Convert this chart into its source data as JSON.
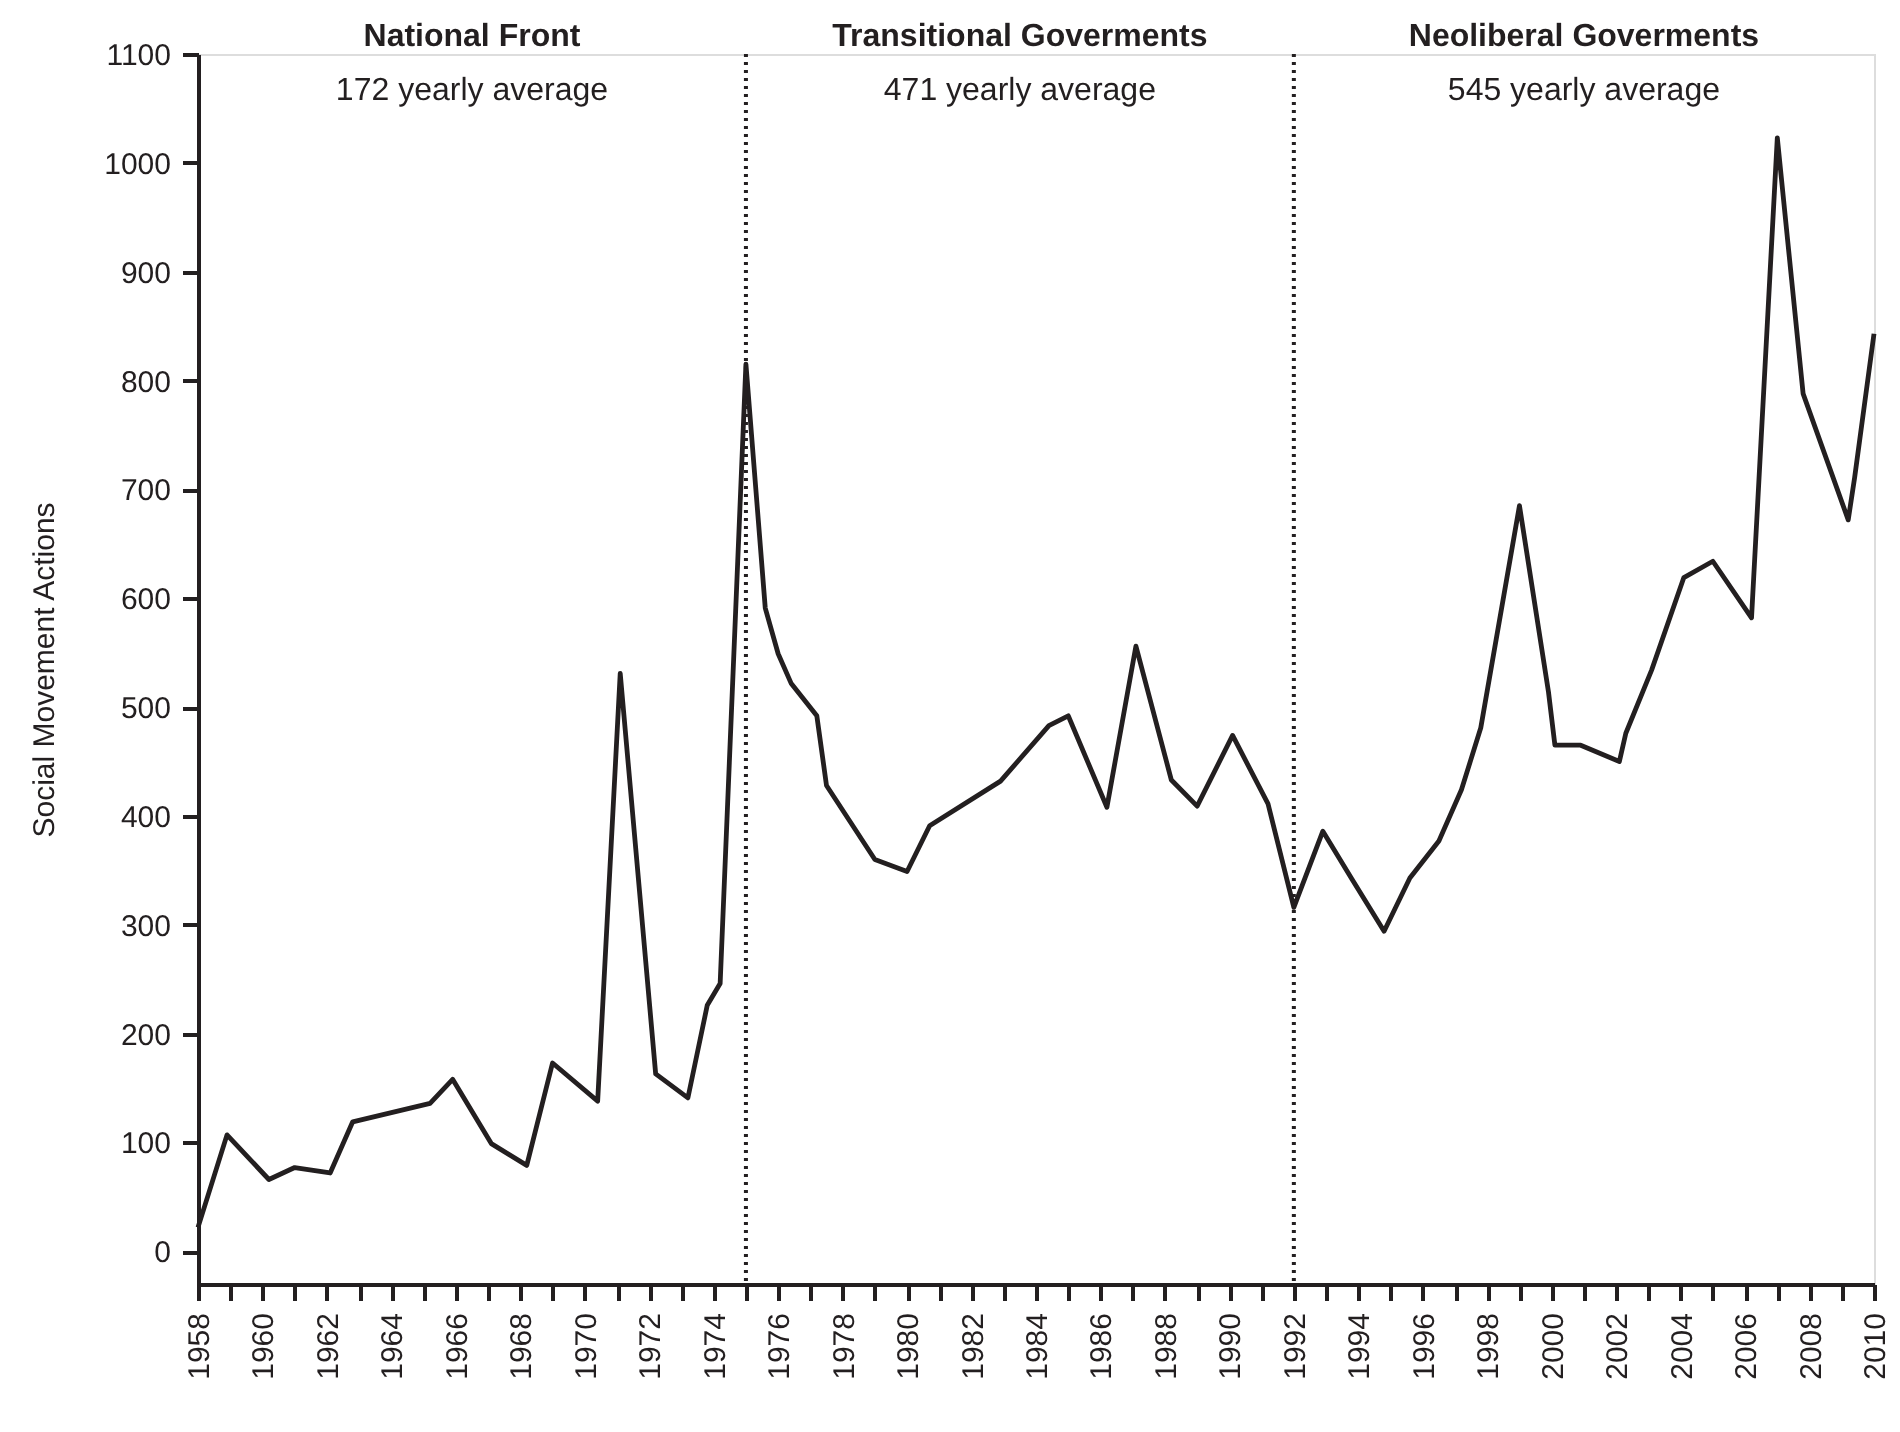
{
  "chart_data": {
    "type": "line",
    "ylabel": "Social Movement Actions",
    "x": [
      1958.0,
      1958.9,
      1960.2,
      1961.0,
      1962.1,
      1962.8,
      1965.2,
      1965.9,
      1967.1,
      1968.2,
      1969.0,
      1970.4,
      1971.1,
      1972.2,
      1973.2,
      1973.8,
      1974.2,
      1975.0,
      1975.6,
      1976.0,
      1976.4,
      1977.2,
      1977.5,
      1979.0,
      1980.0,
      1980.7,
      1982.9,
      1984.4,
      1985.0,
      1986.2,
      1987.1,
      1988.2,
      1989.0,
      1990.1,
      1991.2,
      1992.0,
      1992.9,
      1993.8,
      1994.8,
      1995.6,
      1996.5,
      1997.2,
      1997.8,
      1999.0,
      1999.9,
      2000.1,
      2000.9,
      2002.1,
      2002.3,
      2003.1,
      2004.1,
      2005.0,
      2006.2,
      2007.0,
      2007.8,
      2009.2,
      2009.4,
      2010.0
    ],
    "series": [
      {
        "color": "#231f20",
        "values": [
          22,
          107,
          66,
          77,
          72,
          119,
          136,
          158,
          99,
          79,
          173,
          138,
          531,
          163,
          141,
          226,
          246,
          815,
          591,
          549,
          522,
          492,
          428,
          360,
          349,
          391,
          432,
          483,
          492,
          408,
          556,
          433,
          409,
          474,
          411,
          316,
          386,
          342,
          294,
          343,
          377,
          424,
          481,
          685,
          514,
          465,
          465,
          450,
          476,
          534,
          619,
          634,
          582,
          1023,
          788,
          672,
          711,
          843
        ]
      }
    ],
    "xlim": [
      1958,
      2010
    ],
    "xticks": [
      1958,
      {
        "value": 1959,
        "label": null
      },
      1960,
      {
        "value": 1961,
        "label": null
      },
      1962,
      {
        "value": 1963,
        "label": null
      },
      1964,
      {
        "value": 1965,
        "label": null
      },
      1966,
      {
        "value": 1967,
        "label": null
      },
      1968,
      {
        "value": 1969,
        "label": null
      },
      1970,
      {
        "value": 1971,
        "label": null
      },
      1972,
      {
        "value": 1973,
        "label": null
      },
      1974,
      {
        "value": 1975,
        "label": null
      },
      1976,
      {
        "value": 1977,
        "label": null
      },
      1978,
      {
        "value": 1979,
        "label": null
      },
      1980,
      {
        "value": 1981,
        "label": null
      },
      1982,
      {
        "value": 1983,
        "label": null
      },
      1984,
      {
        "value": 1985,
        "label": null
      },
      1986,
      {
        "value": 1987,
        "label": null
      },
      1988,
      {
        "value": 1989,
        "label": null
      },
      1990,
      {
        "value": 1991,
        "label": null
      },
      1992,
      {
        "value": 1993,
        "label": null
      },
      1994,
      {
        "value": 1995,
        "label": null
      },
      1996,
      {
        "value": 1997,
        "label": null
      },
      1998,
      {
        "value": 1999,
        "label": null
      },
      2000,
      {
        "value": 2001,
        "label": null
      },
      2002,
      {
        "value": 2003,
        "label": null
      },
      2004,
      {
        "value": 2005,
        "label": null
      },
      2006,
      {
        "value": 2007,
        "label": null
      },
      2008,
      {
        "value": 2009,
        "label": null
      },
      2010
    ],
    "ylim": [
      -30,
      1100
    ],
    "yticks": [
      0,
      100,
      200,
      300,
      400,
      500,
      600,
      700,
      800,
      900,
      1000,
      1100
    ],
    "ref_lines": [
      {
        "axis": "x",
        "value": 1975,
        "line_style": "dotted"
      },
      {
        "axis": "x",
        "value": 1992,
        "line_style": "dotted"
      }
    ],
    "annotations": [
      "National Front",
      "172 yearly average",
      "Transitional Goverments",
      "471 yearly average",
      "Neoliberal Goverments",
      "545 yearly average"
    ],
    "grid": false,
    "marker": "none",
    "line_style": "solid"
  }
}
